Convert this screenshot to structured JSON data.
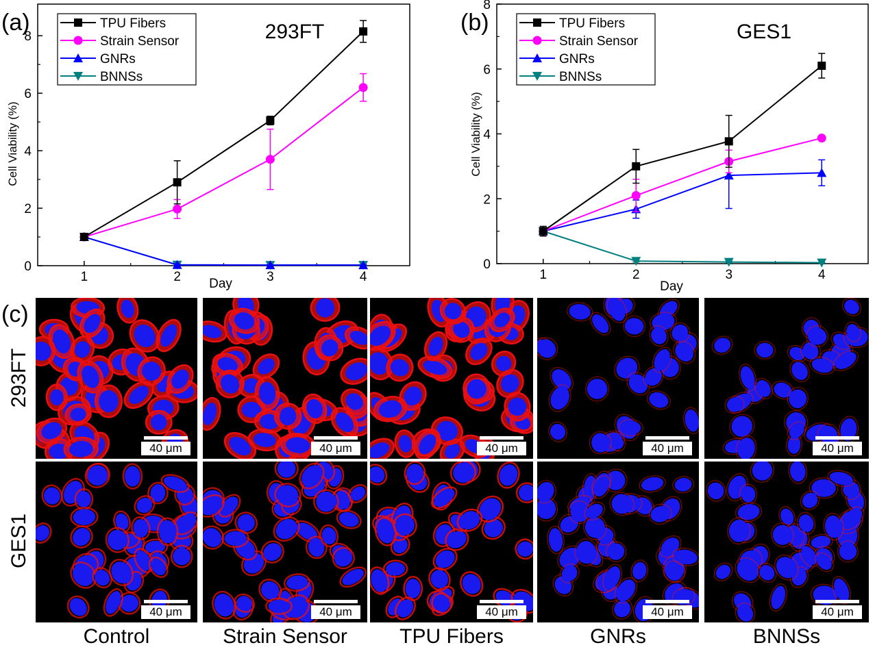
{
  "labels": {
    "a": "(a)",
    "b": "(b)",
    "c": "(c)"
  },
  "colors": {
    "tpu": "#000000",
    "strain": "#ff00ff",
    "gnrs": "#0000ff",
    "bnnss": "#008080",
    "cell_red": "#e81010",
    "nucleus_blue": "#1a1aee"
  },
  "chart_data": [
    {
      "id": "a",
      "type": "line",
      "title": "293FT",
      "xlabel": "Day",
      "ylabel": "Cell Viability (%)",
      "x": [
        1,
        2,
        3,
        4
      ],
      "xticks": [
        "1",
        "2",
        "3",
        "4"
      ],
      "xlim": [
        0.5,
        4.5
      ],
      "ylim": [
        0,
        9.1
      ],
      "yticks": [
        0,
        2,
        4,
        6,
        8
      ],
      "ytick_labels": [
        "0",
        "2",
        "4",
        "6",
        "8"
      ],
      "legend": "top-left",
      "series": [
        {
          "name": "TPU Fibers",
          "marker": "square",
          "color": "#000000",
          "values": [
            1.0,
            2.9,
            5.05,
            8.15
          ],
          "errors": [
            0.07,
            0.75,
            0.15,
            0.38
          ]
        },
        {
          "name": "Strain Sensor",
          "marker": "circle",
          "color": "#ff00ff",
          "values": [
            1.0,
            1.97,
            3.7,
            6.2
          ],
          "errors": [
            0.07,
            0.33,
            1.05,
            0.48
          ]
        },
        {
          "name": "GNRs",
          "marker": "triangle-up",
          "color": "#0000ff",
          "values": [
            1.0,
            0.03,
            0.02,
            0.02
          ],
          "errors": [
            0.05,
            0.02,
            0.01,
            0.01
          ]
        },
        {
          "name": "BNNSs",
          "marker": "triangle-down",
          "color": "#008080",
          "values": [
            1.0,
            0.03,
            0.02,
            0.02
          ],
          "errors": [
            0.05,
            0.02,
            0.01,
            0.01
          ]
        }
      ]
    },
    {
      "id": "b",
      "type": "line",
      "title": "GES1",
      "xlabel": "Day",
      "ylabel": "Cell Viability (%)",
      "x": [
        1,
        2,
        3,
        4
      ],
      "xticks": [
        "1",
        "2",
        "3",
        "4"
      ],
      "xlim": [
        0.5,
        4.5
      ],
      "ylim": [
        0,
        8
      ],
      "yticks": [
        0,
        2,
        4,
        6,
        8
      ],
      "ytick_labels": [
        "0",
        "2",
        "4",
        "6",
        "8"
      ],
      "legend": "top-left",
      "series": [
        {
          "name": "TPU Fibers",
          "marker": "square",
          "color": "#000000",
          "values": [
            1.0,
            3.0,
            3.77,
            6.1
          ],
          "errors": [
            0.15,
            0.52,
            0.8,
            0.38
          ]
        },
        {
          "name": "Strain Sensor",
          "marker": "circle",
          "color": "#ff00ff",
          "values": [
            1.0,
            2.1,
            3.15,
            3.87
          ],
          "errors": [
            0.1,
            0.5,
            0.35,
            0.05
          ]
        },
        {
          "name": "GNRs",
          "marker": "triangle-up",
          "color": "#0000ff",
          "values": [
            1.0,
            1.68,
            2.72,
            2.8
          ],
          "errors": [
            0.1,
            0.28,
            1.02,
            0.4
          ]
        },
        {
          "name": "BNNSs",
          "marker": "triangle-down",
          "color": "#008080",
          "values": [
            1.0,
            0.08,
            0.05,
            0.03
          ],
          "errors": [
            0.05,
            0.03,
            0.02,
            0.01
          ]
        }
      ]
    }
  ],
  "micrographs": {
    "rows": [
      "293FT",
      "GES1"
    ],
    "columns": [
      "Control",
      "Strain Sensor",
      "TPU Fibers",
      "GNRs",
      "BNNSs"
    ],
    "scale_bar_label": "40 μm",
    "panels": [
      {
        "row": "293FT",
        "column": "Control",
        "cells": 38,
        "stain": 1.0
      },
      {
        "row": "293FT",
        "column": "Strain Sensor",
        "cells": 40,
        "stain": 1.0
      },
      {
        "row": "293FT",
        "column": "TPU Fibers",
        "cells": 42,
        "stain": 1.0
      },
      {
        "row": "293FT",
        "column": "GNRs",
        "cells": 30,
        "stain": 0.25
      },
      {
        "row": "293FT",
        "column": "BNNSs",
        "cells": 32,
        "stain": 0.25
      },
      {
        "row": "GES1",
        "column": "Control",
        "cells": 40,
        "stain": 0.6
      },
      {
        "row": "GES1",
        "column": "Strain Sensor",
        "cells": 44,
        "stain": 0.6
      },
      {
        "row": "GES1",
        "column": "TPU Fibers",
        "cells": 40,
        "stain": 0.75
      },
      {
        "row": "GES1",
        "column": "GNRs",
        "cells": 44,
        "stain": 0.3
      },
      {
        "row": "GES1",
        "column": "BNNSs",
        "cells": 40,
        "stain": 0.3
      }
    ]
  }
}
